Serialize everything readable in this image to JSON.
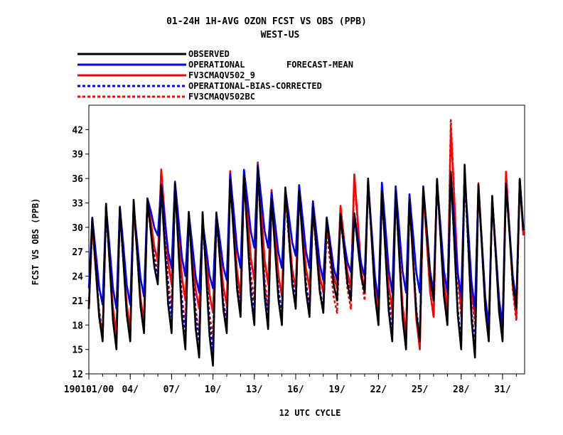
{
  "chart_data": {
    "type": "line",
    "title": "01-24H    1H-AVG OZON FCST VS OBS (PPB)",
    "subtitle": "WEST-US",
    "legend_note": "FORECAST-MEAN",
    "xlabel": "12 UTC CYCLE",
    "ylabel": "FCST VS OBS (PPB)",
    "ylim": [
      12,
      45
    ],
    "xlim": [
      1,
      32.6
    ],
    "yticks": [
      12,
      15,
      18,
      21,
      24,
      27,
      30,
      33,
      36,
      39,
      42
    ],
    "xticks": [
      {
        "day": 1,
        "label": "190101/00"
      },
      {
        "day": 4,
        "label": "04/"
      },
      {
        "day": 7,
        "label": "07/"
      },
      {
        "day": 10,
        "label": "10/"
      },
      {
        "day": 13,
        "label": "13/"
      },
      {
        "day": 16,
        "label": "16/"
      },
      {
        "day": 19,
        "label": "19/"
      },
      {
        "day": 22,
        "label": "22/"
      },
      {
        "day": 25,
        "label": "25/"
      },
      {
        "day": 28,
        "label": "28/"
      },
      {
        "day": 31,
        "label": "31/"
      }
    ],
    "grid": false,
    "legend_position": "top-left",
    "daily_peak_hour_fraction": 0.3,
    "daily": {
      "days": [
        1,
        2,
        3,
        4,
        5,
        6,
        7,
        8,
        9,
        10,
        11,
        12,
        13,
        14,
        15,
        16,
        17,
        18,
        19,
        20,
        21,
        22,
        23,
        24,
        25,
        26,
        27,
        28,
        29,
        30,
        31,
        32
      ],
      "series": [
        {
          "name": "OBSERVED",
          "color": "#000000",
          "dash": "",
          "max": [
            31.5,
            33.5,
            33,
            34,
            34,
            35.5,
            36,
            32.5,
            32.5,
            32.5,
            36.5,
            37,
            38,
            34,
            35.5,
            35,
            33,
            31.5,
            32,
            32,
            36.5,
            35,
            35,
            34,
            35.5,
            36.5,
            37.5,
            38.5,
            36,
            34.5,
            36,
            36.5
          ],
          "min": [
            20,
            16,
            15,
            16,
            17,
            23,
            17,
            15,
            14,
            13,
            17,
            19,
            18,
            17.5,
            18,
            20,
            19,
            19.5,
            21,
            21,
            22,
            18,
            16,
            15,
            16,
            21,
            18,
            15,
            14,
            16,
            16,
            20
          ]
        },
        {
          "name": "OPERATIONAL",
          "color": "#0000ff",
          "dash": "",
          "max": [
            31.5,
            33,
            33,
            33,
            34,
            35.5,
            36,
            32,
            31,
            32,
            37,
            37.5,
            38,
            34.5,
            35,
            35.5,
            33.5,
            31.5,
            31,
            32,
            36,
            36,
            35.5,
            34.5,
            35.5,
            36,
            37,
            37,
            35.5,
            34,
            36,
            36.5
          ],
          "min": [
            22.5,
            20.5,
            20,
            20.5,
            21.5,
            29,
            25,
            24,
            22,
            22.5,
            23.5,
            25,
            27.5,
            27.5,
            25,
            26.5,
            25,
            23.5,
            23.5,
            24.5,
            24,
            21,
            22,
            22,
            22,
            22,
            22,
            21.5,
            20,
            18,
            18,
            21
          ]
        },
        {
          "name": "FV3CMAQV502_9",
          "color": "#ff0000",
          "dash": "",
          "max": [
            31,
            33,
            33,
            33,
            34,
            37.5,
            36,
            32,
            31.5,
            32,
            37.5,
            37.5,
            38.5,
            35,
            34.5,
            35,
            32,
            30.5,
            33,
            37,
            36,
            34,
            34.5,
            34,
            35,
            36.5,
            43,
            37,
            36,
            34,
            37.5,
            36.5
          ],
          "min": [
            20,
            16.5,
            17,
            17.5,
            18.5,
            26,
            23,
            21,
            20,
            19.5,
            20.5,
            21.5,
            23.5,
            23,
            21.5,
            22.5,
            22.5,
            22,
            22.5,
            22.5,
            22,
            20,
            20,
            17,
            15,
            19,
            20,
            20,
            19,
            17,
            18,
            19
          ]
        },
        {
          "name": "OPERATIONAL-BIAS-CORRECTED",
          "color": "#0000ff",
          "dash": "4,3",
          "max": [
            31,
            33,
            32.5,
            33.5,
            33.5,
            35.5,
            35.5,
            32,
            31.5,
            32,
            36.5,
            37,
            37.5,
            34,
            35,
            35,
            33,
            31,
            31.5,
            32,
            36,
            35.5,
            35,
            34,
            35,
            36,
            37,
            37,
            35.5,
            34,
            36,
            36
          ],
          "min": [
            20.5,
            17,
            16,
            16.5,
            18,
            24,
            19,
            17,
            16,
            15,
            18,
            19.5,
            19.5,
            19,
            19.5,
            21,
            20,
            20,
            21,
            21.5,
            22,
            18.5,
            17,
            16,
            16.5,
            21,
            19,
            16,
            15.5,
            17,
            16.5,
            20
          ]
        },
        {
          "name": "FV3CMAQV502BC",
          "color": "#ff0000",
          "dash": "4,3",
          "max": [
            30.5,
            32.5,
            32.5,
            33,
            33,
            37.5,
            35.5,
            32,
            31,
            31.5,
            37,
            37,
            38.5,
            34.5,
            34.5,
            34.5,
            32.5,
            30,
            33,
            37,
            36,
            34,
            34.5,
            34,
            35,
            36.5,
            44,
            37,
            35.5,
            34,
            37.5,
            36.5
          ],
          "min": [
            20,
            16.5,
            16.5,
            17,
            18,
            25,
            20,
            18,
            17,
            16.5,
            18.5,
            20,
            21,
            20,
            19,
            20.5,
            20.5,
            19.5,
            19.5,
            20,
            21,
            19,
            19,
            17,
            15.5,
            19,
            20,
            19,
            18,
            16.5,
            17,
            18.5
          ]
        }
      ]
    }
  }
}
